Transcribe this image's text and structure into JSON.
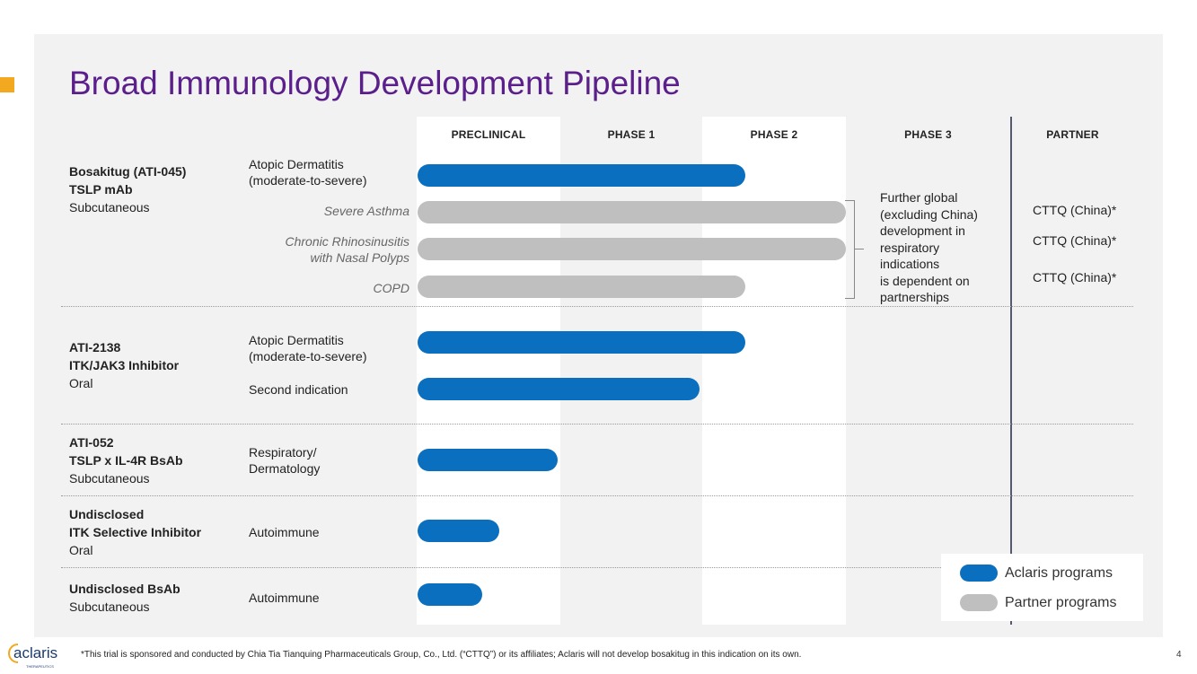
{
  "title": "Broad Immunology Development Pipeline",
  "colors": {
    "aclaris": "#0a6fbf",
    "partner": "#bfbfbf",
    "title": "#5b1f8c",
    "accent": "#f2a91f"
  },
  "chart_data": {
    "type": "pipeline-gantt",
    "stages": [
      "PRECLINICAL",
      "PHASE 1",
      "PHASE 2",
      "PHASE 3"
    ],
    "partner_header": "PARTNER",
    "programs": [
      {
        "name": "Bosakitug (ATI-045)",
        "target": "TSLP mAb",
        "route": "Subcutaneous",
        "indications": [
          {
            "label": "Atopic Dermatitis\n(moderate-to-severe)",
            "progress": 2.3,
            "kind": "aclaris",
            "style": "normal",
            "partner": ""
          },
          {
            "label": "Severe Asthma",
            "progress": 3.0,
            "kind": "partner",
            "style": "italic",
            "partner": "CTTQ (China)*"
          },
          {
            "label": "Chronic Rhinosinusitis\nwith Nasal Polyps",
            "progress": 3.0,
            "kind": "partner",
            "style": "italic",
            "partner": "CTTQ (China)*"
          },
          {
            "label": "COPD",
            "progress": 2.3,
            "kind": "partner",
            "style": "italic",
            "partner": "CTTQ (China)*"
          }
        ]
      },
      {
        "name": "ATI-2138",
        "target": "ITK/JAK3 Inhibitor",
        "route": "Oral",
        "indications": [
          {
            "label": "Atopic Dermatitis\n(moderate-to-severe)",
            "progress": 2.3,
            "kind": "aclaris",
            "style": "normal",
            "partner": ""
          },
          {
            "label": "Second indication",
            "progress": 1.98,
            "kind": "aclaris",
            "style": "normal",
            "partner": ""
          }
        ]
      },
      {
        "name": "ATI-052",
        "target": "TSLP x IL-4R BsAb",
        "route": "Subcutaneous",
        "indications": [
          {
            "label": "Respiratory/\nDermatology",
            "progress": 0.98,
            "kind": "aclaris",
            "style": "normal",
            "partner": ""
          }
        ]
      },
      {
        "name": "Undisclosed",
        "target": "ITK Selective Inhibitor",
        "route": "Oral",
        "indications": [
          {
            "label": "Autoimmune",
            "progress": 0.57,
            "kind": "aclaris",
            "style": "normal",
            "partner": ""
          }
        ]
      },
      {
        "name": "Undisclosed BsAb",
        "target": "",
        "route": "Subcutaneous",
        "indications": [
          {
            "label": "Autoimmune",
            "progress": 0.45,
            "kind": "aclaris",
            "style": "normal",
            "partner": ""
          }
        ]
      }
    ],
    "phase3_note": "Further global\n(excluding China)\ndevelopment in\nrespiratory\nindications\nis dependent on\npartnerships",
    "legend": [
      {
        "label": "Aclaris programs",
        "kind": "aclaris"
      },
      {
        "label": "Partner programs",
        "kind": "partner"
      }
    ]
  },
  "footnote": "*This trial is sponsored and conducted by Chia Tia Tianquing Pharmaceuticals Group, Co., Ltd. (“CTTQ”) or its affiliates; Aclaris will not develop bosakitug in this indication on its own.",
  "page_number": "4",
  "logo": {
    "name": "aclaris",
    "tagline": "THERAPEUTICS"
  }
}
